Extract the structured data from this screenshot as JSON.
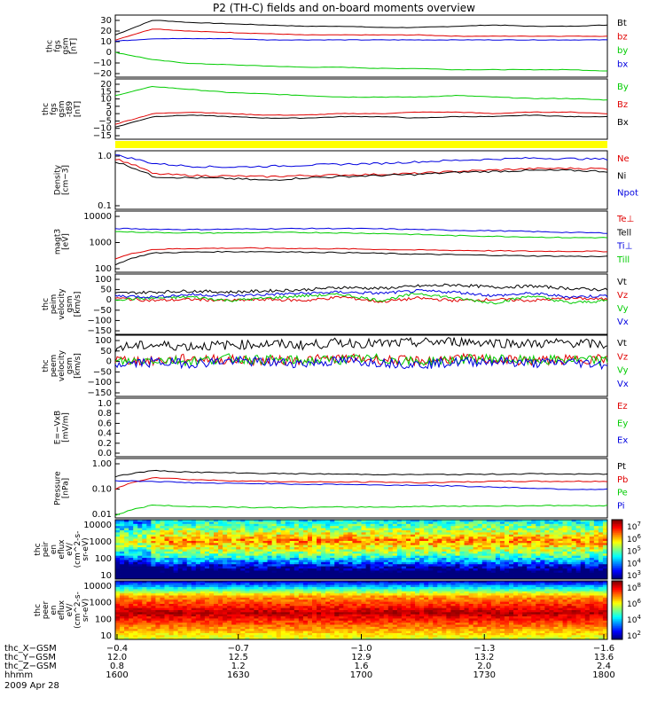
{
  "title": "P2 (TH-C) fields and on-board moments overview",
  "date_label": "2009 Apr 28",
  "colors": {
    "black": "#000000",
    "red": "#e00000",
    "green": "#00cc00",
    "blue": "#0000e0",
    "yellow": "#ffff00"
  },
  "chart_data": [
    {
      "type": "line",
      "ylabel": [
        "thc",
        "fgs",
        "gsm",
        "[nT]"
      ],
      "yticks": [
        "30",
        "20",
        "10",
        "0",
        "−10",
        "−20"
      ],
      "ylim": [
        -20,
        30
      ],
      "series": [
        {
          "name": "Bt",
          "color": "black",
          "values": [
            14,
            26,
            24,
            23,
            22,
            21,
            21,
            20,
            20,
            21,
            22,
            21,
            21,
            22
          ]
        },
        {
          "name": "bz",
          "color": "red",
          "values": [
            10,
            19,
            17,
            16,
            15,
            14,
            14,
            14,
            14,
            13,
            13,
            13,
            13,
            13
          ]
        },
        {
          "name": "by",
          "color": "green",
          "values": [
            0,
            -6,
            -9,
            -10,
            -11,
            -12,
            -12,
            -13,
            -13,
            -14,
            -14,
            -14,
            -14,
            -15
          ]
        },
        {
          "name": "bx",
          "color": "blue",
          "values": [
            9,
            11,
            11,
            11,
            10,
            10,
            10,
            10,
            10,
            10,
            10,
            10,
            10,
            10
          ]
        }
      ]
    },
    {
      "type": "line",
      "ylabel": [
        "thc",
        "fgs",
        "gsm",
        "-t89",
        "[nT]"
      ],
      "yticks": [
        "20",
        "15",
        "10",
        "5",
        "0",
        "−5",
        "−10",
        "−15"
      ],
      "ylim": [
        -20,
        20
      ],
      "series": [
        {
          "name": "By",
          "color": "green",
          "values": [
            9,
            15,
            13,
            11,
            10,
            9,
            8,
            8,
            8,
            9,
            8,
            7,
            7,
            6
          ]
        },
        {
          "name": "Bz",
          "color": "red",
          "values": [
            -10,
            -3,
            -2,
            -3,
            -4,
            -4,
            -3,
            -3,
            -2,
            -2,
            -3,
            -2,
            -2,
            -3
          ]
        },
        {
          "name": "Bx",
          "color": "black",
          "values": [
            -12,
            -5,
            -4,
            -5,
            -6,
            -6,
            -5,
            -5,
            -6,
            -5,
            -5,
            -4,
            -5,
            -5
          ]
        }
      ]
    },
    {
      "type": "line",
      "ylabel": [
        "Density",
        "[cm−3]"
      ],
      "yticks": [
        "1.0",
        "0.1"
      ],
      "ylim": [
        0.1,
        1.2
      ],
      "log": true,
      "series": [
        {
          "name": "Ne",
          "color": "red",
          "values": [
            0.85,
            0.45,
            0.42,
            0.41,
            0.4,
            0.42,
            0.43,
            0.44,
            0.46,
            0.5,
            0.53,
            0.56,
            0.57,
            0.56
          ]
        },
        {
          "name": "Ni",
          "color": "black",
          "values": [
            0.75,
            0.4,
            0.38,
            0.37,
            0.34,
            0.38,
            0.4,
            0.42,
            0.44,
            0.48,
            0.5,
            0.52,
            0.52,
            0.5
          ]
        },
        {
          "name": "Npot",
          "color": "blue",
          "values": [
            1.0,
            0.7,
            0.62,
            0.6,
            0.62,
            0.65,
            0.68,
            0.7,
            0.75,
            0.8,
            0.84,
            0.88,
            0.86,
            0.84
          ]
        }
      ]
    },
    {
      "type": "line",
      "ylabel": [
        "magt3",
        "[eV]"
      ],
      "yticks": [
        "10000",
        "1000",
        "100"
      ],
      "ylim": [
        100,
        15000
      ],
      "log": true,
      "series": [
        {
          "name": "Te⊥",
          "color": "red",
          "values": [
            300,
            650,
            700,
            720,
            720,
            700,
            680,
            650,
            620,
            600,
            580,
            560,
            560,
            550
          ]
        },
        {
          "name": "Tell",
          "color": "black",
          "values": [
            180,
            480,
            520,
            540,
            540,
            520,
            500,
            470,
            440,
            420,
            400,
            380,
            370,
            360
          ]
        },
        {
          "name": "Ti⊥",
          "color": "blue",
          "values": [
            3600,
            3400,
            3300,
            3400,
            3500,
            3600,
            3600,
            3500,
            3300,
            3100,
            3000,
            2800,
            2600,
            2500
          ]
        },
        {
          "name": "Till",
          "color": "green",
          "values": [
            2800,
            2600,
            2500,
            2500,
            2600,
            2600,
            2500,
            2400,
            2200,
            2000,
            1900,
            1800,
            1700,
            1700
          ]
        }
      ]
    },
    {
      "type": "line",
      "ylabel": [
        "thc",
        "peim",
        "velocity",
        "gsm",
        "[km/s]"
      ],
      "yticks": [
        "100",
        "50",
        "0",
        "−50",
        "−100",
        "−150"
      ],
      "ylim": [
        -150,
        100
      ],
      "series": [
        {
          "name": "Vt",
          "color": "black",
          "values": [
            20,
            25,
            30,
            25,
            30,
            35,
            45,
            40,
            50,
            55,
            45,
            50,
            40,
            35
          ]
        },
        {
          "name": "Vz",
          "color": "red",
          "values": [
            0,
            -10,
            -5,
            -10,
            -5,
            -10,
            5,
            -15,
            0,
            -10,
            -5,
            -10,
            0,
            -5
          ]
        },
        {
          "name": "Vy",
          "color": "green",
          "values": [
            -5,
            0,
            5,
            -10,
            0,
            10,
            15,
            -10,
            20,
            0,
            -20,
            10,
            -20,
            -10
          ]
        },
        {
          "name": "Vx",
          "color": "blue",
          "values": [
            10,
            5,
            15,
            10,
            15,
            20,
            25,
            20,
            30,
            25,
            10,
            20,
            5,
            10
          ]
        }
      ]
    },
    {
      "type": "line",
      "ylabel": [
        "thc",
        "peem",
        "velocity",
        "gsm",
        "[km/s]"
      ],
      "yticks": [
        "100",
        "50",
        "0",
        "−50",
        "−100",
        "−150"
      ],
      "ylim": [
        -150,
        100
      ],
      "series": [
        {
          "name": "Vt",
          "color": "black",
          "values": [
            50,
            60,
            55,
            60,
            65,
            60,
            70,
            65,
            70,
            75,
            70,
            65,
            70,
            60
          ]
        },
        {
          "name": "Vz",
          "color": "red",
          "values": [
            0,
            -5,
            5,
            0,
            -5,
            0,
            5,
            0,
            -5,
            5,
            0,
            -5,
            0,
            5
          ]
        },
        {
          "name": "Vy",
          "color": "green",
          "values": [
            -10,
            0,
            -5,
            5,
            0,
            -5,
            0,
            5,
            -10,
            0,
            5,
            -5,
            0,
            -5
          ]
        },
        {
          "name": "Vx",
          "color": "blue",
          "values": [
            -20,
            -10,
            -15,
            -5,
            -10,
            -15,
            -5,
            -10,
            -20,
            -10,
            -5,
            -15,
            -10,
            -20
          ]
        }
      ]
    },
    {
      "type": "line",
      "ylabel": [
        "E=−VxB",
        "[mV/m]"
      ],
      "yticks": [
        "1.0",
        "0.8",
        "0.6",
        "0.4",
        "0.2",
        "0.0"
      ],
      "ylim": [
        0,
        1
      ],
      "series": [
        {
          "name": "Ez",
          "color": "red",
          "values": []
        },
        {
          "name": "Ey",
          "color": "green",
          "values": []
        },
        {
          "name": "Ex",
          "color": "blue",
          "values": []
        }
      ]
    },
    {
      "type": "line",
      "ylabel": [
        "Pressure",
        "[nPa]"
      ],
      "yticks": [
        "1.00",
        "0.10",
        "0.01"
      ],
      "ylim": [
        0.01,
        1.2
      ],
      "log": true,
      "series": [
        {
          "name": "Pt",
          "color": "black",
          "values": [
            0.28,
            0.45,
            0.4,
            0.38,
            0.36,
            0.35,
            0.34,
            0.33,
            0.33,
            0.33,
            0.34,
            0.35,
            0.34,
            0.34
          ]
        },
        {
          "name": "Pb",
          "color": "red",
          "values": [
            0.1,
            0.26,
            0.22,
            0.2,
            0.19,
            0.18,
            0.18,
            0.18,
            0.17,
            0.18,
            0.19,
            0.19,
            0.19,
            0.19
          ]
        },
        {
          "name": "Pe",
          "color": "green",
          "values": [
            0.012,
            0.028,
            0.025,
            0.024,
            0.023,
            0.023,
            0.024,
            0.024,
            0.025,
            0.026,
            0.026,
            0.027,
            0.027,
            0.027
          ]
        },
        {
          "name": "Pi",
          "color": "blue",
          "values": [
            0.2,
            0.19,
            0.17,
            0.16,
            0.16,
            0.15,
            0.15,
            0.14,
            0.14,
            0.13,
            0.12,
            0.11,
            0.1,
            0.1
          ]
        }
      ]
    },
    {
      "type": "heatmap",
      "ylabel": [
        "thc",
        "peir",
        "en",
        "eflux",
        "eV/",
        "(cm^2-s-",
        "sr-eV)"
      ],
      "yticks": [
        "10000",
        "1000",
        "100",
        "10"
      ],
      "colorbar_labels": [
        "10^7",
        "10^6",
        "10^5",
        "10^4",
        "10^3"
      ]
    },
    {
      "type": "heatmap",
      "ylabel": [
        "thc",
        "peer",
        "en",
        "eflux",
        "eV/",
        "(cm^2-s-",
        "sr-eV)"
      ],
      "yticks": [
        "10000",
        "1000",
        "100",
        "10"
      ],
      "colorbar_labels": [
        "10^8",
        "10^6",
        "10^4",
        "10^2"
      ]
    }
  ],
  "x_axis": {
    "rows": [
      {
        "label": "thc_X−GSM",
        "values": [
          "−0.4",
          "−0.7",
          "−1.0",
          "−1.3",
          "−1.6"
        ]
      },
      {
        "label": "thc_Y−GSM",
        "values": [
          "12.0",
          "12.5",
          "12.9",
          "13.2",
          "13.6"
        ]
      },
      {
        "label": "thc_Z−GSM",
        "values": [
          "0.8",
          "1.2",
          "1.6",
          "2.0",
          "2.4"
        ]
      },
      {
        "label": "hhmm",
        "values": [
          "1600",
          "1630",
          "1700",
          "1730",
          "1800"
        ]
      }
    ]
  }
}
